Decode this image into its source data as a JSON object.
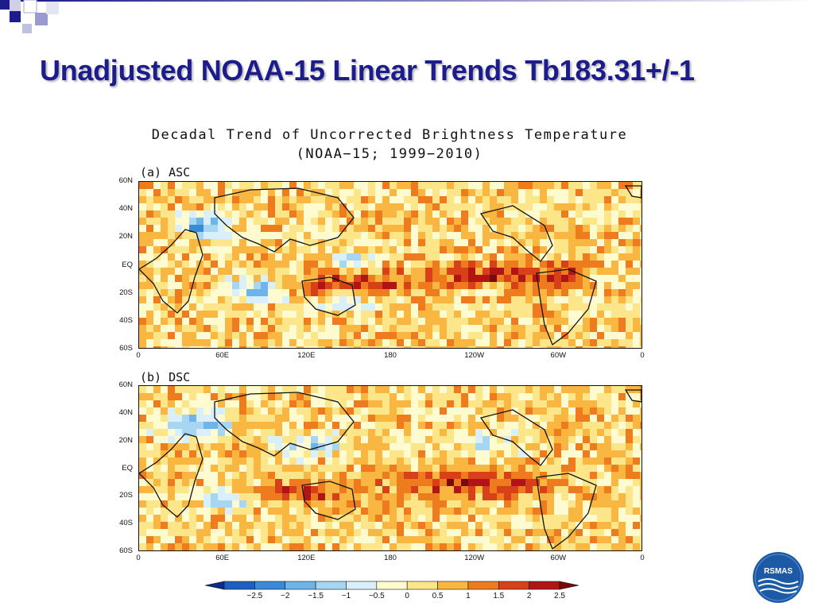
{
  "slide": {
    "title": "Unadjusted NOAA-15 Linear Trends Tb183.31+/-1"
  },
  "figure": {
    "title_line1": "Decadal Trend of Uncorrected Brightness Temperature",
    "title_line2": "(NOAA−15; 1999−2010)",
    "panels": [
      {
        "id": "asc",
        "label": "(a) ASC"
      },
      {
        "id": "dsc",
        "label": "(b) DSC"
      }
    ],
    "lat_ticks": [
      "60N",
      "40N",
      "20N",
      "EQ",
      "20S",
      "40S",
      "60S"
    ],
    "lon_ticks": [
      "0",
      "60E",
      "120E",
      "180",
      "120W",
      "60W",
      "0"
    ],
    "colorbar": {
      "ticks": [
        "−2.5",
        "−2",
        "−1.5",
        "−1",
        "−0.5",
        "0",
        "0.5",
        "1",
        "1.5",
        "2",
        "2.5"
      ],
      "colors": [
        "#0b2c8f",
        "#1f5fbf",
        "#3a8ad6",
        "#6fb4e8",
        "#a6d6f2",
        "#d9f0fb",
        "#fffbd0",
        "#fde58a",
        "#f9b640",
        "#ef7b1f",
        "#d8401a",
        "#b01414",
        "#7a0a0a"
      ]
    }
  },
  "logo": {
    "text": "RSMAS",
    "color": "#1c5aa6"
  }
}
